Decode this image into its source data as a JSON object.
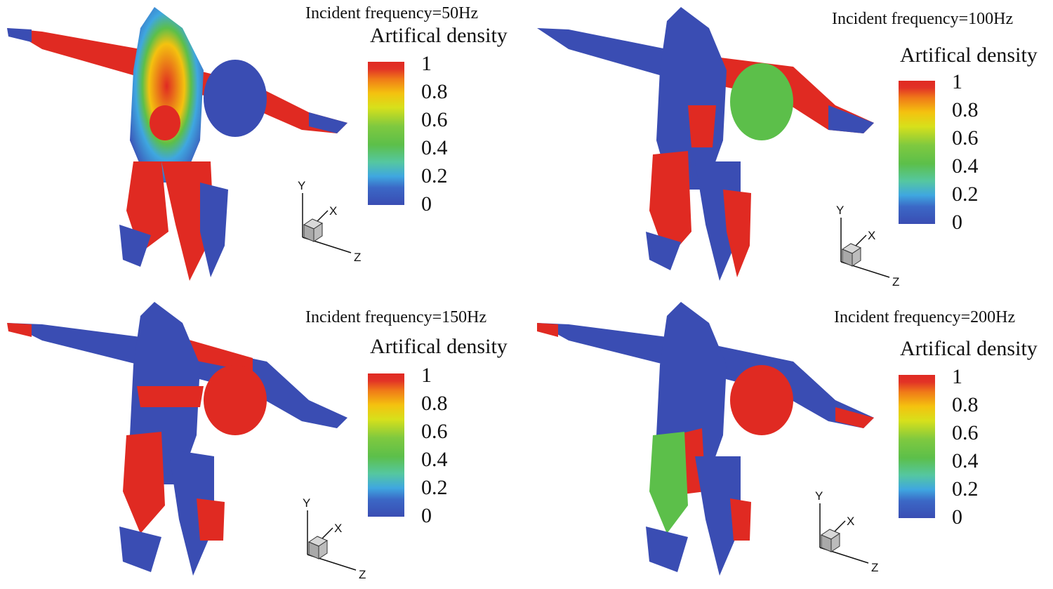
{
  "colorbar": {
    "title": "Artifical density",
    "ticks": [
      "1",
      "0.8",
      "0.6",
      "0.4",
      "0.2",
      "0"
    ]
  },
  "axes": {
    "x": "X",
    "y": "Y",
    "z": "Z"
  },
  "panels": [
    {
      "title": "Incident frequency=50Hz"
    },
    {
      "title": "Incident frequency=100Hz"
    },
    {
      "title": "Incident frequency=150Hz"
    },
    {
      "title": "Incident frequency=200Hz"
    }
  ],
  "colors": {
    "high": "#e02a22",
    "mid": "#5cbf4a",
    "low": "#3a4db3"
  }
}
